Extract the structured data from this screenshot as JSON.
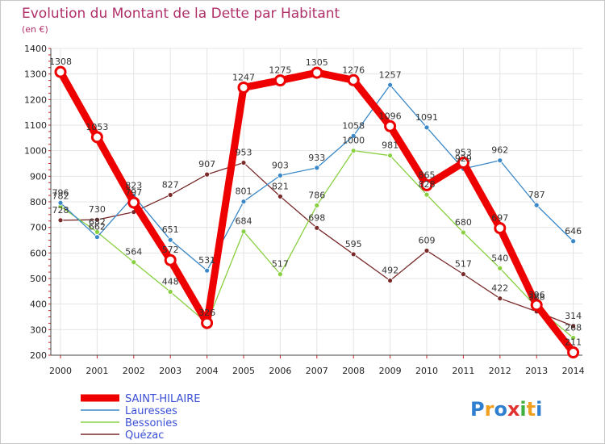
{
  "chart_data": {
    "type": "line",
    "title": "Evolution du Montant de la Dette par Habitant",
    "subtitle": "(en €)",
    "xlabel": "",
    "ylabel": "",
    "ylim": [
      200,
      1400
    ],
    "yticks": [
      200,
      300,
      400,
      500,
      600,
      700,
      800,
      900,
      1000,
      1100,
      1200,
      1300,
      1400
    ],
    "categories": [
      "2000",
      "2001",
      "2002",
      "2003",
      "2004",
      "2005",
      "2006",
      "2007",
      "2008",
      "2009",
      "2010",
      "2011",
      "2012",
      "2013",
      "2014"
    ],
    "series": [
      {
        "name": "Quézac",
        "color": "#7a2a2a",
        "values": [
          728,
          730,
          760,
          827,
          907,
          953,
          821,
          698,
          595,
          492,
          609,
          517,
          422,
          371,
          314
        ],
        "labels": [
          "728",
          "730",
          "",
          "827",
          "907",
          "953",
          "821",
          "698",
          "595",
          "492",
          "609",
          "517",
          "422",
          "",
          "314"
        ]
      },
      {
        "name": "Bessonies",
        "color": "#88d040",
        "values": [
          782,
          682,
          564,
          448,
          326,
          684,
          517,
          786,
          1000,
          981,
          828,
          680,
          540,
          388,
          268
        ],
        "labels": [
          "782",
          "682",
          "564",
          "448",
          "",
          "684",
          "517",
          "786",
          "1000",
          "981",
          "828",
          "680",
          "540",
          "388",
          "268"
        ]
      },
      {
        "name": "Lauresses",
        "color": "#3a88c8",
        "values": [
          796,
          662,
          823,
          651,
          531,
          801,
          903,
          933,
          1058,
          1257,
          1091,
          929,
          962,
          787,
          646
        ],
        "labels": [
          "796",
          "662",
          "823",
          "651",
          "531",
          "801",
          "903",
          "933",
          "1058",
          "1257",
          "1091",
          "929",
          "962",
          "787",
          "646"
        ]
      },
      {
        "name": "SAINT-HILAIRE",
        "color": "#ee0000",
        "values": [
          1308,
          1053,
          797,
          572,
          326,
          1247,
          1275,
          1305,
          1276,
          1096,
          865,
          953,
          697,
          396,
          211
        ],
        "labels": [
          "1308",
          "1053",
          "797",
          "572",
          "326",
          "1247",
          "1275",
          "1305",
          "1276",
          "1096",
          "865",
          "953",
          "697",
          "396",
          "211"
        ]
      }
    ],
    "legend": [
      "SAINT-HILAIRE",
      "Lauresses",
      "Bessonies",
      "Quézac"
    ],
    "legend_position": "bottom-left"
  },
  "logo": {
    "text": "Proxiti"
  }
}
